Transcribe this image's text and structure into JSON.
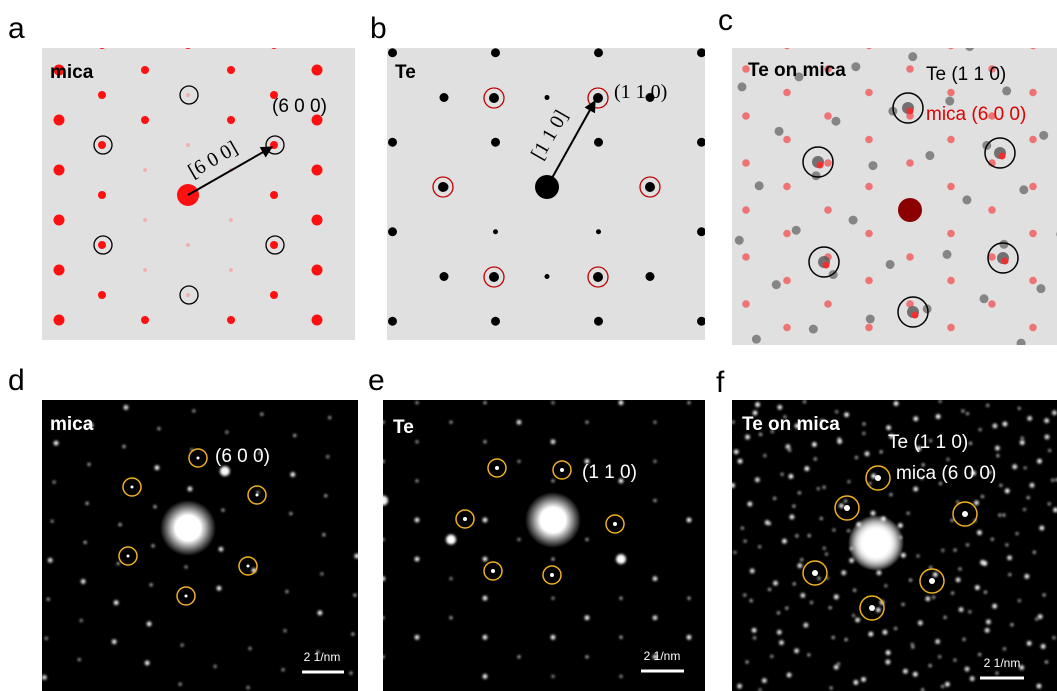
{
  "panels": [
    {
      "letter": "a",
      "label": "mica",
      "direction": "[6 0 0]",
      "spot": "(6 0 0)"
    },
    {
      "letter": "b",
      "label": "Te",
      "direction": "[1 1 0]",
      "spot": "(1 1 0)"
    },
    {
      "letter": "c",
      "label": "Te on mica",
      "te_spot": "Te (1 1 0)",
      "mica_spot": "mica (6 0 0)"
    },
    {
      "letter": "d",
      "label": "mica",
      "spot": "(6 0 0)",
      "scale_bar": "2 1/nm"
    },
    {
      "letter": "e",
      "label": "Te",
      "spot": "(1 1 0)",
      "scale_bar": "2 1/nm"
    },
    {
      "letter": "f",
      "label": "Te on mica",
      "te_spot": "Te (1 1 0)",
      "mica_spot": "mica (6 0 0)",
      "scale_bar": "2 1/nm"
    }
  ]
}
